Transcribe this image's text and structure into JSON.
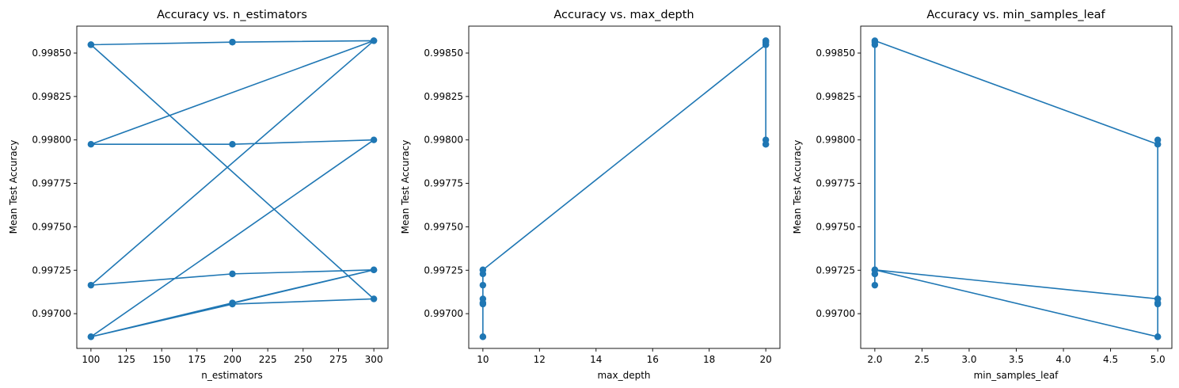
{
  "figure": {
    "line_color": "#1f77b4",
    "axes_color": "#000000",
    "background": "#ffffff"
  },
  "chart_data": [
    {
      "type": "line",
      "title": "Accuracy vs. n_estimators",
      "xlabel": "n_estimators",
      "ylabel": "Mean Test Accuracy",
      "xlim": [
        90,
        310
      ],
      "ylim": [
        0.9968,
        0.998655
      ],
      "xticks": [
        100,
        125,
        150,
        175,
        200,
        225,
        250,
        275,
        300
      ],
      "xtick_labels": [
        "100",
        "125",
        "150",
        "175",
        "200",
        "225",
        "250",
        "275",
        "300"
      ],
      "yticks": [
        0.997,
        0.99725,
        0.9975,
        0.99775,
        0.998,
        0.99825,
        0.9985
      ],
      "ytick_labels": [
        "0.99700",
        "0.99725",
        "0.99750",
        "0.99775",
        "0.99800",
        "0.99825",
        "0.99850"
      ],
      "grid": false,
      "markers": true,
      "x": [
        100,
        200,
        300,
        100,
        200,
        300,
        100,
        200,
        300,
        100,
        200,
        300,
        100,
        200,
        300,
        100,
        200,
        300
      ],
      "y": [
        0.998548,
        0.998563,
        0.998571,
        0.997975,
        0.997975,
        0.998,
        0.996867,
        0.997055,
        0.997085,
        0.998548,
        0.998563,
        0.998571,
        0.997164,
        0.997229,
        0.997252,
        0.996867,
        0.997062,
        0.997252
      ]
    },
    {
      "type": "line",
      "title": "Accuracy vs. max_depth",
      "xlabel": "max_depth",
      "ylabel": "Mean Test Accuracy",
      "xlim": [
        9.5,
        20.5
      ],
      "ylim": [
        0.9968,
        0.998655
      ],
      "xticks": [
        10,
        12,
        14,
        16,
        18,
        20
      ],
      "xtick_labels": [
        "10",
        "12",
        "14",
        "16",
        "18",
        "20"
      ],
      "yticks": [
        0.997,
        0.99725,
        0.9975,
        0.99775,
        0.998,
        0.99825,
        0.9985
      ],
      "ytick_labels": [
        "0.99700",
        "0.99725",
        "0.99750",
        "0.99775",
        "0.99800",
        "0.99825",
        "0.99850"
      ],
      "grid": false,
      "markers": true,
      "x": [
        10,
        10,
        10,
        10,
        10,
        10,
        10,
        10,
        10,
        20,
        20,
        20,
        20,
        20,
        20,
        20,
        20,
        20
      ],
      "y": [
        0.997164,
        0.997229,
        0.997252,
        0.996867,
        0.997055,
        0.997085,
        0.996867,
        0.997062,
        0.997252,
        0.998548,
        0.998563,
        0.998571,
        0.997975,
        0.997975,
        0.998,
        0.998548,
        0.998563,
        0.998571
      ]
    },
    {
      "type": "line",
      "title": "Accuracy vs. min_samples_leaf",
      "xlabel": "min_samples_leaf",
      "ylabel": "Mean Test Accuracy",
      "xlim": [
        1.85,
        5.15
      ],
      "ylim": [
        0.9968,
        0.998655
      ],
      "xticks": [
        2.0,
        2.5,
        3.0,
        3.5,
        4.0,
        4.5,
        5.0
      ],
      "xtick_labels": [
        "2.0",
        "2.5",
        "3.0",
        "3.5",
        "4.0",
        "4.5",
        "5.0"
      ],
      "yticks": [
        0.997,
        0.99725,
        0.9975,
        0.99775,
        0.998,
        0.99825,
        0.9985
      ],
      "ytick_labels": [
        "0.99700",
        "0.99725",
        "0.99750",
        "0.99775",
        "0.99800",
        "0.99825",
        "0.99850"
      ],
      "grid": false,
      "markers": true,
      "x": [
        2,
        2,
        2,
        2,
        2,
        2,
        5,
        5,
        5,
        5,
        5,
        5,
        2,
        2,
        2,
        5,
        5,
        5
      ],
      "y": [
        0.997164,
        0.997229,
        0.997252,
        0.998548,
        0.998563,
        0.998571,
        0.997975,
        0.997975,
        0.998,
        0.996867,
        0.997055,
        0.997085,
        0.997252,
        0.997229,
        0.997252,
        0.996867,
        0.997062,
        0.997085
      ]
    }
  ]
}
